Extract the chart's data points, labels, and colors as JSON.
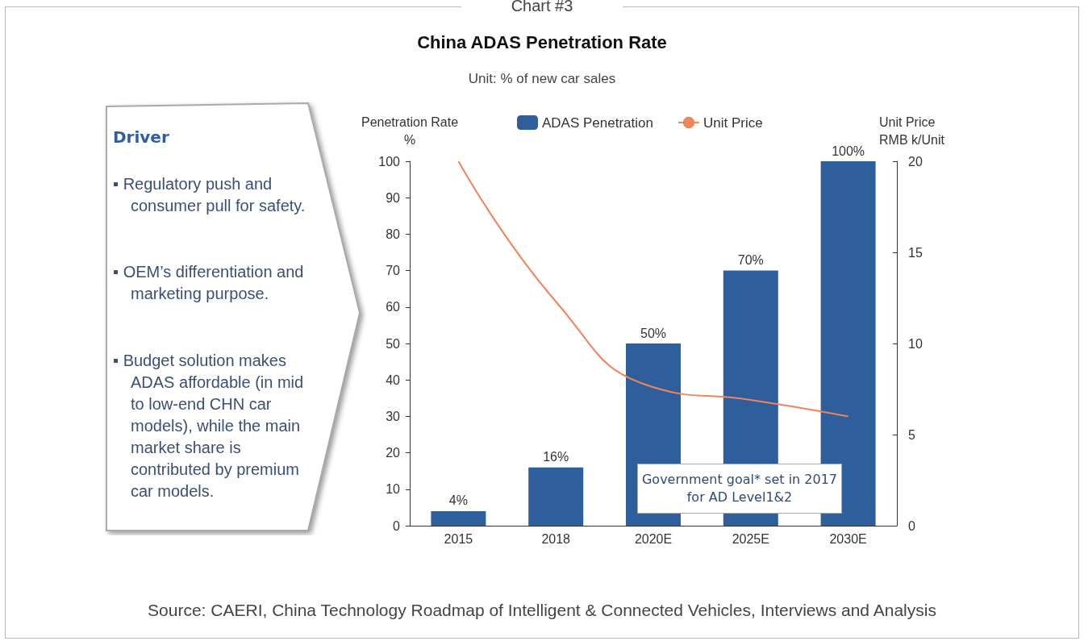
{
  "chart_data": {
    "type": "bar",
    "title": "China ADAS Penetration Rate",
    "subtitle": "Unit: % of new car sales",
    "categories": [
      "2015",
      "2018",
      "2020E",
      "2025E",
      "2030E"
    ],
    "series": [
      {
        "name": "ADAS Penetration",
        "color": "#2f5e9c",
        "values": [
          4,
          16,
          50,
          70,
          100
        ],
        "value_labels": [
          "4%",
          "16%",
          "50%",
          "70%",
          "100%"
        ]
      },
      {
        "name": "Unit Price",
        "type": "line",
        "axis": "y2",
        "color": "#f0855a",
        "values": [
          20,
          12.3,
          7.6,
          6.9,
          6.0
        ]
      }
    ],
    "ylabel": "Penetration Rate\n%",
    "y2label": "Unit Price\nRMB k/Unit",
    "ylim": [
      0,
      100
    ],
    "yticks": [
      0,
      10,
      20,
      30,
      40,
      50,
      60,
      70,
      80,
      90,
      100
    ],
    "y2lim": [
      0,
      20
    ],
    "y2ticks": [
      0,
      5,
      10,
      15,
      20
    ],
    "legend": "top",
    "grid": false,
    "marker": "none",
    "annotations": [
      "Chart #3",
      "Driver",
      "▪ Regulatory push and consumer pull for safety.",
      "▪ OEM’s differentiation and marketing purpose.",
      "▪ Budget solution makes ADAS affordable (in mid to low-end CHN car models), while the main market share is contributed by premium car models.",
      "Government goal* set in 2017 for AD Level1&2",
      "Source: CAERI, China Technology Roadmap of Intelligent & Connected Vehicles, Interviews and Analysis"
    ]
  }
}
